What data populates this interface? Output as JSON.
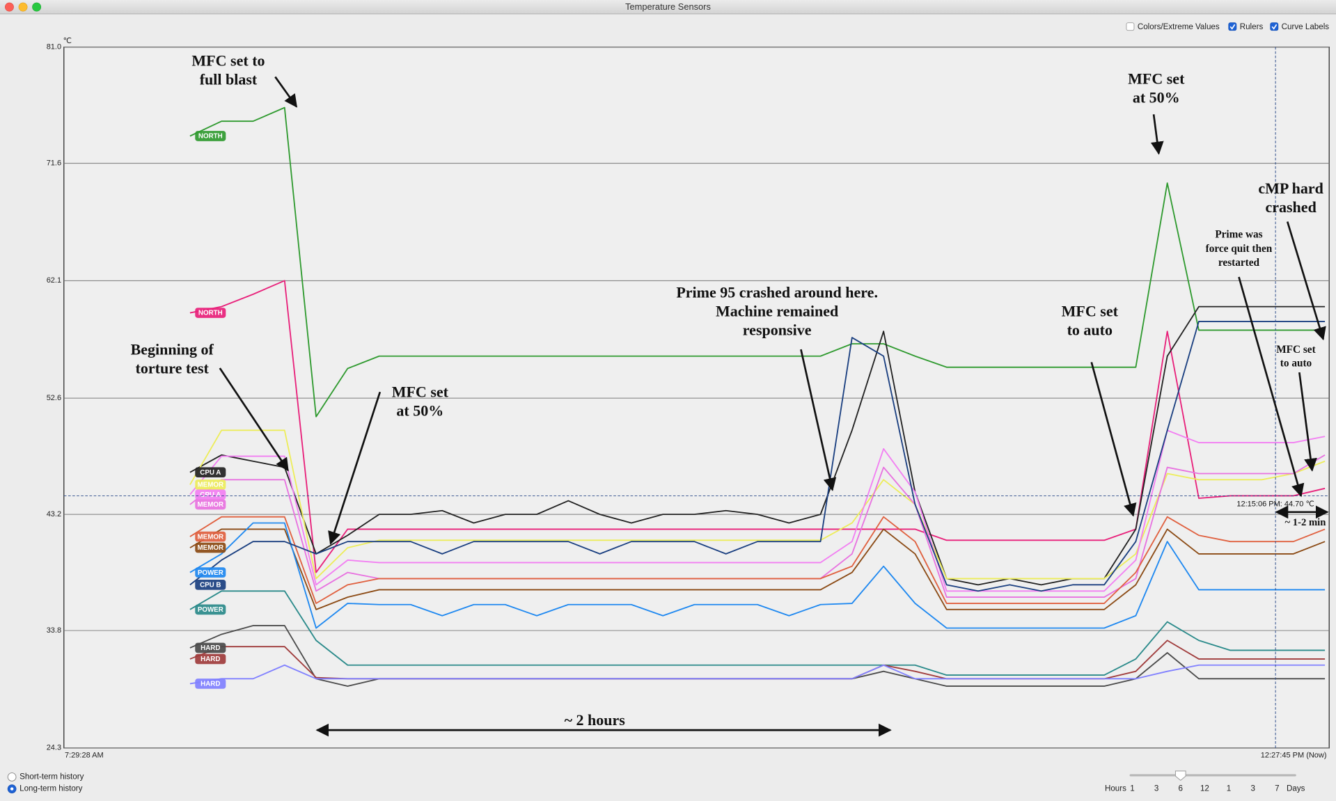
{
  "window": {
    "title": "Temperature Sensors"
  },
  "options": [
    {
      "label": "Colors/Extreme Values",
      "checked": false
    },
    {
      "label": "Rulers",
      "checked": true
    },
    {
      "label": "Curve Labels",
      "checked": true
    }
  ],
  "history": [
    {
      "label": "Short-term history",
      "selected": false
    },
    {
      "label": "Long-term history",
      "selected": true
    }
  ],
  "range_slider": {
    "start_label": "Hours",
    "stops": [
      "1",
      "3",
      "6",
      "12",
      "1",
      "3",
      "7"
    ],
    "end_label": "Days",
    "selected": 2
  },
  "chart_data": {
    "type": "line",
    "y_unit": "℃",
    "ylim": [
      24.3,
      81.0
    ],
    "yticks": [
      24.3,
      33.8,
      43.2,
      52.6,
      62.1,
      71.6,
      {
        "value": 81.0,
        "label": "81.0"
      }
    ],
    "grid": true,
    "curve_labels": true,
    "categories": [
      "7:29:28 AM",
      null,
      null,
      null,
      null,
      null,
      null,
      null,
      null,
      null,
      null,
      null,
      null,
      null,
      null,
      null,
      null,
      null,
      null,
      null,
      null,
      null,
      null,
      null,
      null,
      null,
      null,
      null,
      null,
      null,
      null,
      null,
      null,
      null,
      null,
      null,
      null,
      null,
      null,
      null,
      "12:27:45 PM (Now)"
    ],
    "cursor": {
      "label": "12:15:06 PM: 44.70 ℃",
      "value": 44.7
    },
    "series": [
      {
        "name": "NORTH",
        "color": "#2f9a2f",
        "values": [
          null,
          null,
          null,
          null,
          73.8,
          75.0,
          75.0,
          76.1,
          51.1,
          55.0,
          56.0,
          56.0,
          56.0,
          56.0,
          56.0,
          56.0,
          56.0,
          56.0,
          56.0,
          56.0,
          56.0,
          56.0,
          56.0,
          56.0,
          56.0,
          57.0,
          57.0,
          56.0,
          55.1,
          55.1,
          55.1,
          55.1,
          55.1,
          55.1,
          55.1,
          70.0,
          58.1,
          58.1,
          58.1,
          58.1,
          58.1
        ]
      },
      {
        "name": "NORTH",
        "color": "#e8207a",
        "values": [
          null,
          null,
          null,
          null,
          59.5,
          60.0,
          61.0,
          62.1,
          38.5,
          42.0,
          42.0,
          42.0,
          42.0,
          42.0,
          42.0,
          42.0,
          42.0,
          42.0,
          42.0,
          42.0,
          42.0,
          42.0,
          42.0,
          42.0,
          42.0,
          42.0,
          42.0,
          42.0,
          41.1,
          41.1,
          41.1,
          41.1,
          41.1,
          41.1,
          42.0,
          58.0,
          44.5,
          44.7,
          44.7,
          44.7,
          45.3
        ]
      },
      {
        "name": "CPU A",
        "color": "#222222",
        "values": [
          null,
          null,
          null,
          null,
          46.6,
          48.0,
          47.5,
          47.0,
          40.0,
          41.5,
          43.2,
          43.2,
          43.5,
          42.5,
          43.2,
          43.2,
          44.3,
          43.2,
          42.5,
          43.2,
          43.2,
          43.5,
          43.2,
          42.5,
          43.2,
          50.0,
          58.0,
          45.0,
          38.0,
          37.5,
          38.0,
          37.5,
          38.0,
          38.0,
          42.0,
          56.0,
          60.0,
          60.0,
          60.0,
          60.0,
          60.0
        ]
      },
      {
        "name": "MEMOR",
        "color": "#eded5a",
        "values": [
          null,
          null,
          null,
          null,
          45.6,
          50.0,
          50.0,
          50.0,
          38.0,
          40.5,
          41.1,
          41.1,
          41.1,
          41.1,
          41.1,
          41.1,
          41.1,
          41.1,
          41.1,
          41.1,
          41.1,
          41.1,
          41.1,
          41.1,
          41.1,
          42.5,
          46.0,
          44.0,
          38.0,
          38.0,
          38.0,
          38.0,
          38.0,
          38.0,
          40.0,
          46.5,
          46.0,
          46.0,
          46.0,
          46.5,
          47.5
        ]
      },
      {
        "name": "CPU A",
        "color": "#f27ff2",
        "values": [
          null,
          null,
          null,
          null,
          44.8,
          47.9,
          47.9,
          47.9,
          37.5,
          39.5,
          39.3,
          39.3,
          39.3,
          39.3,
          39.3,
          39.3,
          39.3,
          39.3,
          39.3,
          39.3,
          39.3,
          39.3,
          39.3,
          39.3,
          39.3,
          41.0,
          48.5,
          45.0,
          37.0,
          37.0,
          37.0,
          37.0,
          37.0,
          37.0,
          39.5,
          50.0,
          49.0,
          49.0,
          49.0,
          49.0,
          49.5
        ]
      },
      {
        "name": "MEMOR",
        "color": "#e872e0",
        "values": [
          null,
          null,
          null,
          null,
          44.0,
          46.0,
          46.0,
          46.0,
          37.0,
          38.5,
          38.0,
          38.0,
          38.0,
          38.0,
          38.0,
          38.0,
          38.0,
          38.0,
          38.0,
          38.0,
          38.0,
          38.0,
          38.0,
          38.0,
          38.0,
          40.0,
          47.0,
          44.0,
          36.5,
          36.5,
          36.5,
          36.5,
          36.5,
          36.5,
          38.0,
          47.0,
          46.5,
          46.5,
          46.5,
          46.5,
          48.0
        ]
      },
      {
        "name": "MEMOR",
        "color": "#e0603f",
        "values": [
          null,
          null,
          null,
          null,
          41.4,
          43.0,
          43.0,
          43.0,
          36.0,
          37.5,
          38.0,
          38.0,
          38.0,
          38.0,
          38.0,
          38.0,
          38.0,
          38.0,
          38.0,
          38.0,
          38.0,
          38.0,
          38.0,
          38.0,
          38.0,
          39.0,
          43.0,
          41.0,
          36.0,
          36.0,
          36.0,
          36.0,
          36.0,
          36.0,
          38.5,
          43.0,
          41.5,
          41.0,
          41.0,
          41.0,
          42.0
        ]
      },
      {
        "name": "MEMOR",
        "color": "#8b4a14",
        "values": [
          null,
          null,
          null,
          null,
          40.5,
          42.0,
          42.0,
          42.0,
          35.5,
          36.5,
          37.1,
          37.1,
          37.1,
          37.1,
          37.1,
          37.1,
          37.1,
          37.1,
          37.1,
          37.1,
          37.1,
          37.1,
          37.1,
          37.1,
          37.1,
          38.5,
          42.0,
          40.0,
          35.5,
          35.5,
          35.5,
          35.5,
          35.5,
          35.5,
          37.5,
          42.0,
          40.0,
          40.0,
          40.0,
          40.0,
          41.0
        ]
      },
      {
        "name": "POWER",
        "color": "#1e88f0",
        "values": [
          null,
          null,
          null,
          null,
          38.5,
          40.0,
          42.5,
          42.5,
          34.0,
          36.0,
          35.9,
          35.9,
          35.0,
          35.9,
          35.9,
          35.0,
          35.9,
          35.9,
          35.9,
          35.0,
          35.9,
          35.9,
          35.9,
          35.0,
          35.9,
          36.0,
          39.0,
          36.0,
          34.0,
          34.0,
          34.0,
          34.0,
          34.0,
          34.0,
          35.0,
          41.0,
          37.1,
          37.1,
          37.1,
          37.1,
          37.1
        ]
      },
      {
        "name": "CPU B",
        "color": "#1a3f80",
        "values": [
          null,
          null,
          null,
          null,
          37.5,
          39.5,
          41.0,
          41.0,
          40.0,
          41.0,
          41.0,
          41.0,
          40.0,
          41.0,
          41.0,
          41.0,
          41.0,
          40.0,
          41.0,
          41.0,
          41.0,
          40.0,
          41.0,
          41.0,
          41.0,
          57.5,
          56.0,
          44.0,
          37.5,
          37.0,
          37.5,
          37.0,
          37.5,
          37.5,
          41.0,
          50.0,
          58.8,
          58.8,
          58.8,
          58.8,
          58.8
        ]
      },
      {
        "name": "POWER",
        "color": "#2a8a8a",
        "values": [
          null,
          null,
          null,
          null,
          35.5,
          37.0,
          37.0,
          37.0,
          33.0,
          31.0,
          31.0,
          31.0,
          31.0,
          31.0,
          31.0,
          31.0,
          31.0,
          31.0,
          31.0,
          31.0,
          31.0,
          31.0,
          31.0,
          31.0,
          31.0,
          31.0,
          31.0,
          31.0,
          30.2,
          30.2,
          30.2,
          30.2,
          30.2,
          30.2,
          31.5,
          34.5,
          33.0,
          32.2,
          32.2,
          32.2,
          32.2
        ]
      },
      {
        "name": "HARD",
        "color": "#4a4a4a",
        "values": [
          null,
          null,
          null,
          null,
          32.4,
          33.5,
          34.2,
          34.2,
          29.9,
          29.3,
          29.9,
          29.9,
          29.9,
          29.9,
          29.9,
          29.9,
          29.9,
          29.9,
          29.9,
          29.9,
          29.9,
          29.9,
          29.9,
          29.9,
          29.9,
          29.9,
          30.5,
          29.9,
          29.3,
          29.3,
          29.3,
          29.3,
          29.3,
          29.3,
          29.9,
          32.0,
          29.9,
          29.9,
          29.9,
          29.9,
          29.9
        ]
      },
      {
        "name": "HARD",
        "color": "#a03c3c",
        "values": [
          null,
          null,
          null,
          null,
          31.5,
          32.5,
          32.5,
          32.5,
          30.0,
          29.9,
          29.9,
          29.9,
          29.9,
          29.9,
          29.9,
          29.9,
          29.9,
          29.9,
          29.9,
          29.9,
          29.9,
          29.9,
          29.9,
          29.9,
          29.9,
          29.9,
          31.0,
          30.5,
          29.9,
          29.9,
          29.9,
          29.9,
          29.9,
          29.9,
          30.5,
          33.0,
          31.5,
          31.5,
          31.5,
          31.5,
          31.5
        ]
      },
      {
        "name": "HARD",
        "color": "#8080ff",
        "values": [
          null,
          null,
          null,
          null,
          29.5,
          29.9,
          29.9,
          31.0,
          29.9,
          29.9,
          29.9,
          29.9,
          29.9,
          29.9,
          29.9,
          29.9,
          29.9,
          29.9,
          29.9,
          29.9,
          29.9,
          29.9,
          29.9,
          29.9,
          29.9,
          29.9,
          31.0,
          29.9,
          29.9,
          29.9,
          29.9,
          29.9,
          29.9,
          29.9,
          29.9,
          30.5,
          31.0,
          31.0,
          31.0,
          31.0,
          31.0
        ]
      }
    ],
    "annotations": [
      {
        "lines": [
          "MFC set to",
          "full blast"
        ]
      },
      {
        "lines": [
          "Beginning of",
          "torture test"
        ]
      },
      {
        "lines": [
          "MFC set",
          "at 50%"
        ]
      },
      {
        "lines": [
          "Prime 95 crashed around here.",
          "Machine remained",
          "responsive"
        ]
      },
      {
        "lines": [
          "~ 2 hours"
        ]
      },
      {
        "lines": [
          "MFC set",
          "to auto"
        ]
      },
      {
        "lines": [
          "MFC set",
          "at 50%"
        ]
      },
      {
        "lines": [
          "cMP hard",
          "crashed"
        ]
      },
      {
        "lines": [
          "Prime was",
          "force quit then",
          "restarted"
        ]
      },
      {
        "lines": [
          "MFC set",
          "to auto"
        ]
      },
      {
        "lines": [
          "~ 1-2 min"
        ]
      }
    ]
  }
}
